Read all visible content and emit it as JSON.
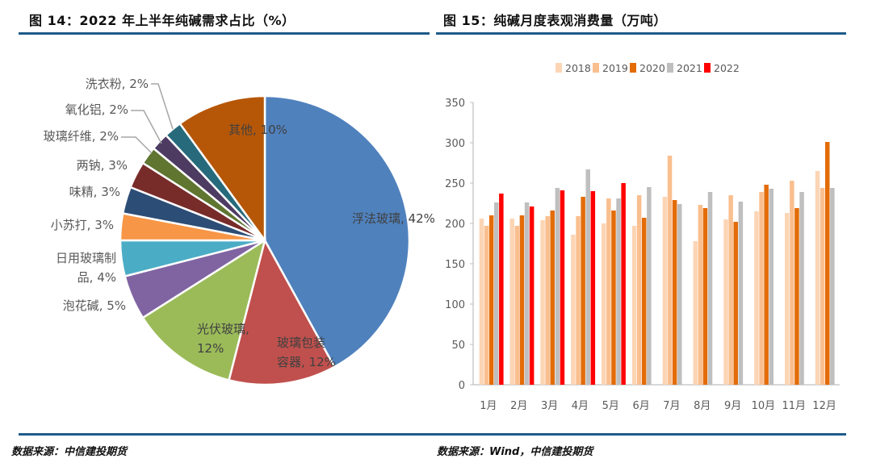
{
  "left": {
    "title": "图 14：2022 年上半年纯碱需求占比（%）",
    "source": "数据来源：中信建投期货"
  },
  "right": {
    "title": "图 15：纯碱月度表观消费量（万吨）",
    "source": "数据来源：Wind，中信建投期货"
  },
  "chart_data": [
    {
      "type": "pie",
      "title": "2022年上半年纯碱需求占比（%）",
      "slices": [
        {
          "label": "浮法玻璃",
          "value": 42,
          "color": "#4f81bd"
        },
        {
          "label": "玻璃包装容器",
          "value": 12,
          "color": "#c0504d"
        },
        {
          "label": "光伏玻璃",
          "value": 12,
          "color": "#9bbb59"
        },
        {
          "label": "泡花碱",
          "value": 5,
          "color": "#8064a2"
        },
        {
          "label": "日用玻璃制品",
          "value": 4,
          "color": "#4bacc6"
        },
        {
          "label": "小苏打",
          "value": 3,
          "color": "#f79646"
        },
        {
          "label": "味精",
          "value": 3,
          "color": "#2c4d75"
        },
        {
          "label": "两钠",
          "value": 3,
          "color": "#772c2a"
        },
        {
          "label": "玻璃纤维",
          "value": 2,
          "color": "#5f7530"
        },
        {
          "label": "氧化铝",
          "value": 2,
          "color": "#4d3b62"
        },
        {
          "label": "洗衣粉",
          "value": 2,
          "color": "#276a7c"
        },
        {
          "label": "其他",
          "value": 10,
          "color": "#b65708"
        }
      ]
    },
    {
      "type": "bar",
      "title": "纯碱月度表观消费量（万吨）",
      "categories": [
        "1月",
        "2月",
        "3月",
        "4月",
        "5月",
        "6月",
        "7月",
        "8月",
        "9月",
        "10月",
        "11月",
        "12月"
      ],
      "series": [
        {
          "name": "2018",
          "color": "#fcd5b5",
          "values": [
            206,
            206,
            204,
            186,
            200,
            197,
            233,
            178,
            205,
            215,
            213,
            265
          ]
        },
        {
          "name": "2019",
          "color": "#fabf8f",
          "values": [
            197,
            197,
            209,
            209,
            231,
            235,
            284,
            223,
            235,
            239,
            253,
            244
          ]
        },
        {
          "name": "2020",
          "color": "#e36c09",
          "values": [
            210,
            210,
            216,
            233,
            216,
            207,
            229,
            219,
            202,
            248,
            219,
            301
          ]
        },
        {
          "name": "2021",
          "color": "#bfbfbf",
          "values": [
            226,
            226,
            244,
            267,
            231,
            245,
            224,
            239,
            227,
            243,
            239,
            244
          ]
        },
        {
          "name": "2022",
          "color": "#ff0000",
          "values": [
            237,
            221,
            241,
            240,
            250,
            null,
            null,
            null,
            null,
            null,
            null,
            null
          ]
        }
      ],
      "yticks": [
        0,
        50,
        100,
        150,
        200,
        250,
        300,
        350
      ],
      "ylim": [
        0,
        350
      ],
      "xlabel": "",
      "ylabel": "",
      "legend_position": "top",
      "grid": false
    }
  ]
}
